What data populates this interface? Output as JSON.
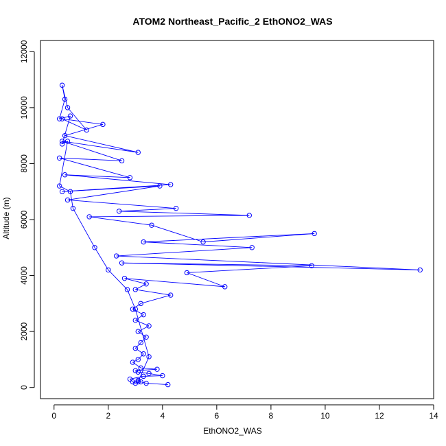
{
  "chart_data": {
    "type": "line",
    "title": "ATOM2 Northeast_Pacific_2 EthONO2_WAS",
    "xlabel": "EthONO2_WAS",
    "ylabel": "Altitude (m)",
    "xlim": [
      -0.5,
      14
    ],
    "ylim": [
      -400,
      12400
    ],
    "xticks": [
      0,
      2,
      4,
      6,
      8,
      10,
      12,
      14
    ],
    "yticks": [
      0,
      2000,
      4000,
      6000,
      8000,
      10000,
      12000
    ],
    "grid": false,
    "legend": "none",
    "series": [
      {
        "color": "#0000ff",
        "marker": "open-circle",
        "points": [
          [
            4.2,
            100
          ],
          [
            3.4,
            150
          ],
          [
            3.2,
            200
          ],
          [
            3.1,
            250
          ],
          [
            3.0,
            150
          ],
          [
            2.9,
            200
          ],
          [
            2.8,
            300
          ],
          [
            3.3,
            400
          ],
          [
            4.0,
            420
          ],
          [
            3.5,
            500
          ],
          [
            3.1,
            550
          ],
          [
            3.0,
            600
          ],
          [
            3.8,
            650
          ],
          [
            3.2,
            700
          ],
          [
            2.9,
            900
          ],
          [
            3.1,
            1000
          ],
          [
            3.3,
            1200
          ],
          [
            3.0,
            1400
          ],
          [
            3.2,
            1600
          ],
          [
            3.4,
            1800
          ],
          [
            3.1,
            2000
          ],
          [
            3.5,
            2200
          ],
          [
            3.0,
            2400
          ],
          [
            3.3,
            2600
          ],
          [
            2.9,
            2800
          ],
          [
            3.2,
            3000
          ],
          [
            4.3,
            3300
          ],
          [
            3.0,
            3500
          ],
          [
            3.4,
            3700
          ],
          [
            2.6,
            3900
          ],
          [
            6.3,
            3600
          ],
          [
            4.9,
            4100
          ],
          [
            9.5,
            4350
          ],
          [
            2.5,
            4450
          ],
          [
            13.5,
            4200
          ],
          [
            2.3,
            4700
          ],
          [
            7.3,
            5000
          ],
          [
            3.3,
            5200
          ],
          [
            9.6,
            5500
          ],
          [
            5.5,
            5200
          ],
          [
            3.6,
            5800
          ],
          [
            1.3,
            6100
          ],
          [
            7.2,
            6150
          ],
          [
            2.4,
            6300
          ],
          [
            4.5,
            6400
          ],
          [
            0.5,
            6700
          ],
          [
            3.9,
            7200
          ],
          [
            0.3,
            7000
          ],
          [
            4.3,
            7250
          ],
          [
            0.4,
            7600
          ],
          [
            2.8,
            7500
          ],
          [
            0.2,
            8200
          ],
          [
            2.5,
            8100
          ],
          [
            0.3,
            8800
          ],
          [
            3.1,
            8400
          ],
          [
            0.4,
            9000
          ],
          [
            1.8,
            9400
          ],
          [
            0.3,
            9600
          ],
          [
            1.2,
            9200
          ],
          [
            0.5,
            10000
          ],
          [
            0.3,
            10800
          ],
          [
            0.4,
            10300
          ],
          [
            0.2,
            9600
          ],
          [
            0.6,
            9700
          ],
          [
            0.3,
            8700
          ],
          [
            0.5,
            8800
          ],
          [
            0.2,
            7200
          ],
          [
            0.6,
            7000
          ],
          [
            0.7,
            6400
          ],
          [
            1.5,
            5000
          ],
          [
            2.0,
            4200
          ],
          [
            2.7,
            3500
          ],
          [
            3.0,
            2800
          ],
          [
            3.5,
            1100
          ],
          [
            3.1,
            200
          ]
        ]
      }
    ]
  }
}
